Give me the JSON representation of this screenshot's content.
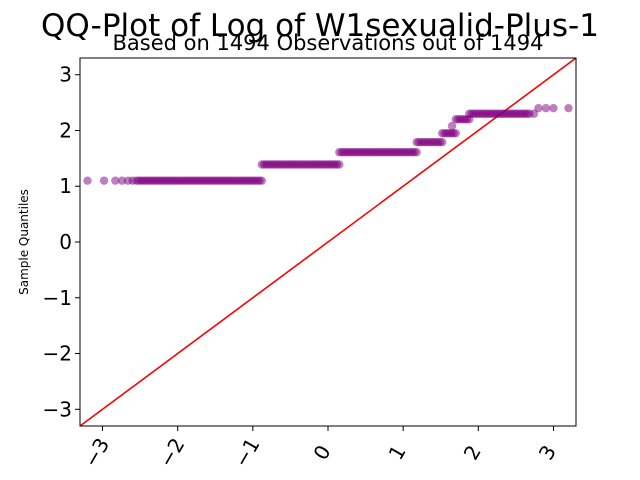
{
  "chart_data": {
    "type": "scatter",
    "title": "QQ-Plot of Log of W1sexualid-Plus-1",
    "subtitle": "Based on 1494 Observations out of 1494",
    "xlabel": "",
    "ylabel": "Sample Quantiles",
    "xlim": [
      -3.3,
      3.3
    ],
    "ylim": [
      -3.3,
      3.3
    ],
    "xticks": [
      -3,
      -2,
      -1,
      0,
      1,
      2,
      3
    ],
    "xtick_labels": [
      "−3",
      "−2",
      "−1",
      "0",
      "1",
      "2",
      "3"
    ],
    "yticks": [
      -3,
      -2,
      -1,
      0,
      1,
      2,
      3
    ],
    "ytick_labels": [
      "−3",
      "−2",
      "−1",
      "0",
      "1",
      "2",
      "3"
    ],
    "grid": false,
    "point_color": "#800080",
    "line_color": "#ff0000",
    "reference_line": {
      "x": [
        -3.3,
        3.3
      ],
      "y": [
        -3.3,
        3.3
      ]
    },
    "steps": [
      {
        "x_start": -2.55,
        "x_end": -0.88,
        "y": 1.1
      },
      {
        "x_start": -0.88,
        "x_end": 0.15,
        "y": 1.39
      },
      {
        "x_start": 0.15,
        "x_end": 1.18,
        "y": 1.61
      },
      {
        "x_start": 1.18,
        "x_end": 1.52,
        "y": 1.79
      },
      {
        "x_start": 1.52,
        "x_end": 1.7,
        "y": 1.95
      },
      {
        "x_start": 1.7,
        "x_end": 1.88,
        "y": 2.2
      },
      {
        "x_start": 1.88,
        "x_end": 2.65,
        "y": 2.3
      }
    ],
    "outliers": [
      {
        "x": -3.2,
        "y": 1.1
      },
      {
        "x": -2.98,
        "y": 1.1
      },
      {
        "x": -2.83,
        "y": 1.1
      },
      {
        "x": -2.74,
        "y": 1.1
      },
      {
        "x": -2.66,
        "y": 1.1
      },
      {
        "x": -2.6,
        "y": 1.1
      },
      {
        "x": 1.65,
        "y": 2.08
      },
      {
        "x": 2.68,
        "y": 2.3
      },
      {
        "x": 2.74,
        "y": 2.3
      },
      {
        "x": 2.8,
        "y": 2.4
      },
      {
        "x": 2.9,
        "y": 2.4
      },
      {
        "x": 3.0,
        "y": 2.4
      },
      {
        "x": 3.2,
        "y": 2.4
      }
    ]
  }
}
